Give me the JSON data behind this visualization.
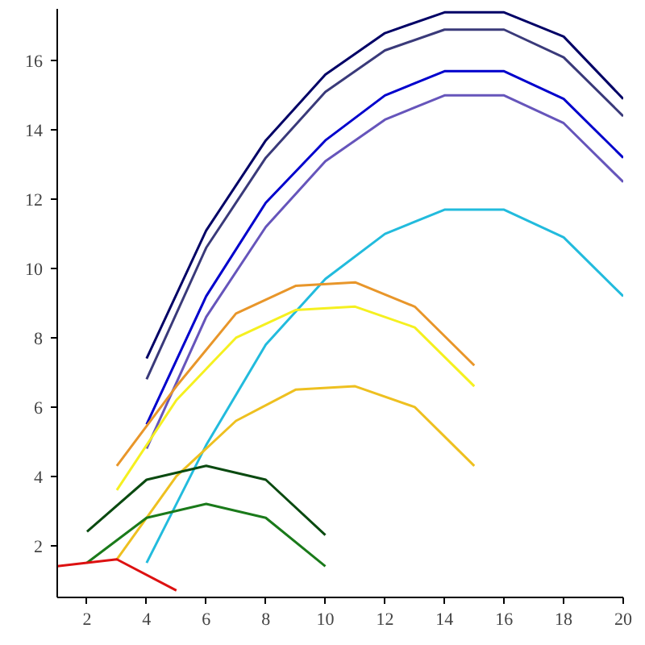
{
  "chart_data": {
    "type": "line",
    "xlim": [
      1,
      20
    ],
    "ylim": [
      0.5,
      17.5
    ],
    "xticks": [
      2,
      4,
      6,
      8,
      10,
      12,
      14,
      16,
      18,
      20
    ],
    "yticks": [
      2,
      4,
      6,
      8,
      10,
      12,
      14,
      16
    ],
    "grid": false,
    "marker": "none",
    "line_style": "solid",
    "series": [
      {
        "color": "#000066",
        "x": [
          4,
          6,
          8,
          10,
          12,
          14,
          16,
          18,
          20
        ],
        "values": [
          7.4,
          11.1,
          13.7,
          15.6,
          16.8,
          17.4,
          17.4,
          16.7,
          14.9
        ]
      },
      {
        "color": "#3a3a7a",
        "x": [
          4,
          6,
          8,
          10,
          12,
          14,
          16,
          18,
          20
        ],
        "values": [
          6.8,
          10.6,
          13.2,
          15.1,
          16.3,
          16.9,
          16.9,
          16.1,
          14.4
        ]
      },
      {
        "color": "#0000cc",
        "x": [
          4,
          6,
          8,
          10,
          12,
          14,
          16,
          18,
          20
        ],
        "values": [
          5.5,
          9.2,
          11.9,
          13.7,
          15.0,
          15.7,
          15.7,
          14.9,
          13.2
        ]
      },
      {
        "color": "#6655bb",
        "x": [
          4,
          6,
          8,
          10,
          12,
          14,
          16,
          18,
          20
        ],
        "values": [
          4.8,
          8.6,
          11.2,
          13.1,
          14.3,
          15.0,
          15.0,
          14.2,
          12.5
        ]
      },
      {
        "color": "#22bbdd",
        "x": [
          4,
          6,
          8,
          10,
          12,
          14,
          16,
          18,
          20
        ],
        "values": [
          1.5,
          4.9,
          7.8,
          9.7,
          11.0,
          11.7,
          11.7,
          10.9,
          9.2
        ]
      },
      {
        "color": "#e8962a",
        "x": [
          3,
          5,
          7,
          9,
          11,
          13,
          15
        ],
        "values": [
          4.3,
          6.6,
          8.7,
          9.5,
          9.6,
          8.9,
          7.2
        ]
      },
      {
        "color": "#f5f020",
        "x": [
          3,
          5,
          7,
          9,
          11,
          13,
          15
        ],
        "values": [
          3.6,
          6.2,
          8.0,
          8.8,
          8.9,
          8.3,
          6.6
        ]
      },
      {
        "color": "#eec020",
        "x": [
          3,
          5,
          7,
          9,
          11,
          13,
          15
        ],
        "values": [
          1.6,
          4.0,
          5.6,
          6.5,
          6.6,
          6.0,
          4.3
        ]
      },
      {
        "color": "#0a4a10",
        "x": [
          2,
          4,
          6,
          8,
          10
        ],
        "values": [
          2.4,
          3.9,
          4.3,
          3.9,
          2.3
        ]
      },
      {
        "color": "#1a7a1a",
        "x": [
          2,
          4,
          6,
          8,
          10
        ],
        "values": [
          1.5,
          2.8,
          3.2,
          2.8,
          1.4
        ]
      },
      {
        "color": "#dd1111",
        "x": [
          1,
          3,
          5
        ],
        "values": [
          1.4,
          1.6,
          0.7
        ]
      }
    ]
  }
}
